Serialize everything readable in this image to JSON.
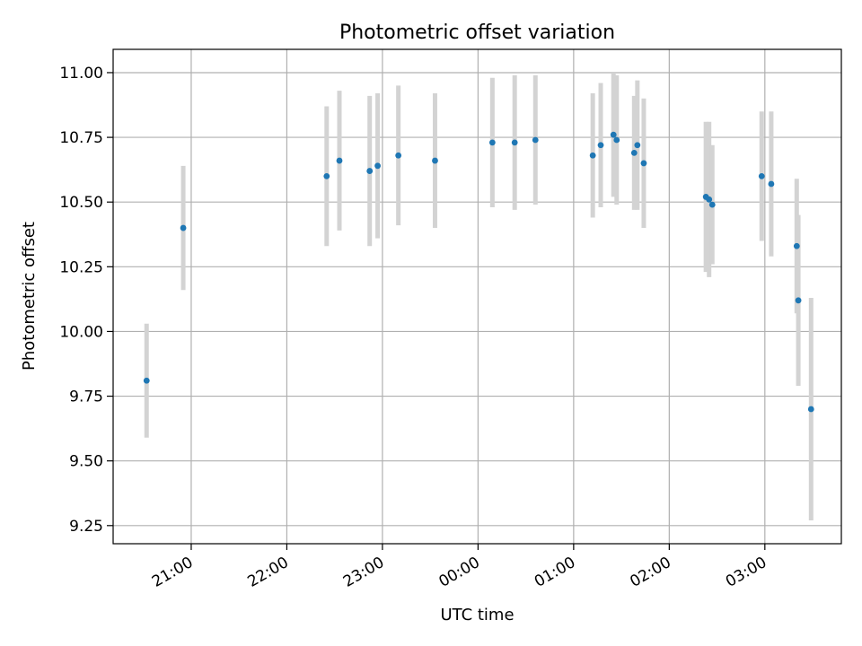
{
  "chart_data": {
    "type": "scatter",
    "title": "Photometric offset variation",
    "xlabel": "UTC time",
    "ylabel": "Photometric offset",
    "x_ticks": [
      "21:00",
      "22:00",
      "23:00",
      "00:00",
      "01:00",
      "02:00",
      "03:00"
    ],
    "y_ticks": [
      "9.25",
      "9.50",
      "9.75",
      "10.00",
      "10.25",
      "10.50",
      "10.75",
      "11.00"
    ],
    "xlim": [
      "20:11",
      "27:48"
    ],
    "ylim": [
      9.18,
      11.09
    ],
    "grid": true,
    "colors": {
      "marker": "#1f77b4",
      "errorbar": "#d3d3d3",
      "grid": "#b0b0b0"
    },
    "points": [
      {
        "x": "20:32",
        "y": 9.81,
        "err": 0.22
      },
      {
        "x": "20:55",
        "y": 10.4,
        "err": 0.24
      },
      {
        "x": "22:25",
        "y": 10.6,
        "err": 0.27
      },
      {
        "x": "22:33",
        "y": 10.66,
        "err": 0.27
      },
      {
        "x": "22:52",
        "y": 10.62,
        "err": 0.29
      },
      {
        "x": "22:57",
        "y": 10.64,
        "err": 0.28
      },
      {
        "x": "23:10",
        "y": 10.68,
        "err": 0.27
      },
      {
        "x": "23:33",
        "y": 10.66,
        "err": 0.26
      },
      {
        "x": "24:09",
        "y": 10.73,
        "err": 0.25
      },
      {
        "x": "24:23",
        "y": 10.73,
        "err": 0.26
      },
      {
        "x": "24:36",
        "y": 10.74,
        "err": 0.25
      },
      {
        "x": "25:12",
        "y": 10.68,
        "err": 0.24
      },
      {
        "x": "25:17",
        "y": 10.72,
        "err": 0.24
      },
      {
        "x": "25:25",
        "y": 10.76,
        "err": 0.24
      },
      {
        "x": "25:27",
        "y": 10.74,
        "err": 0.25
      },
      {
        "x": "25:38",
        "y": 10.69,
        "err": 0.22
      },
      {
        "x": "25:40",
        "y": 10.72,
        "err": 0.25
      },
      {
        "x": "25:44",
        "y": 10.65,
        "err": 0.25
      },
      {
        "x": "26:23",
        "y": 10.52,
        "err": 0.29
      },
      {
        "x": "26:25",
        "y": 10.51,
        "err": 0.3
      },
      {
        "x": "26:27",
        "y": 10.49,
        "err": 0.23
      },
      {
        "x": "26:58",
        "y": 10.6,
        "err": 0.25
      },
      {
        "x": "27:04",
        "y": 10.57,
        "err": 0.28
      },
      {
        "x": "27:20",
        "y": 10.33,
        "err": 0.26
      },
      {
        "x": "27:21",
        "y": 10.12,
        "err": 0.33
      },
      {
        "x": "27:29",
        "y": 9.7,
        "err": 0.43
      }
    ]
  }
}
